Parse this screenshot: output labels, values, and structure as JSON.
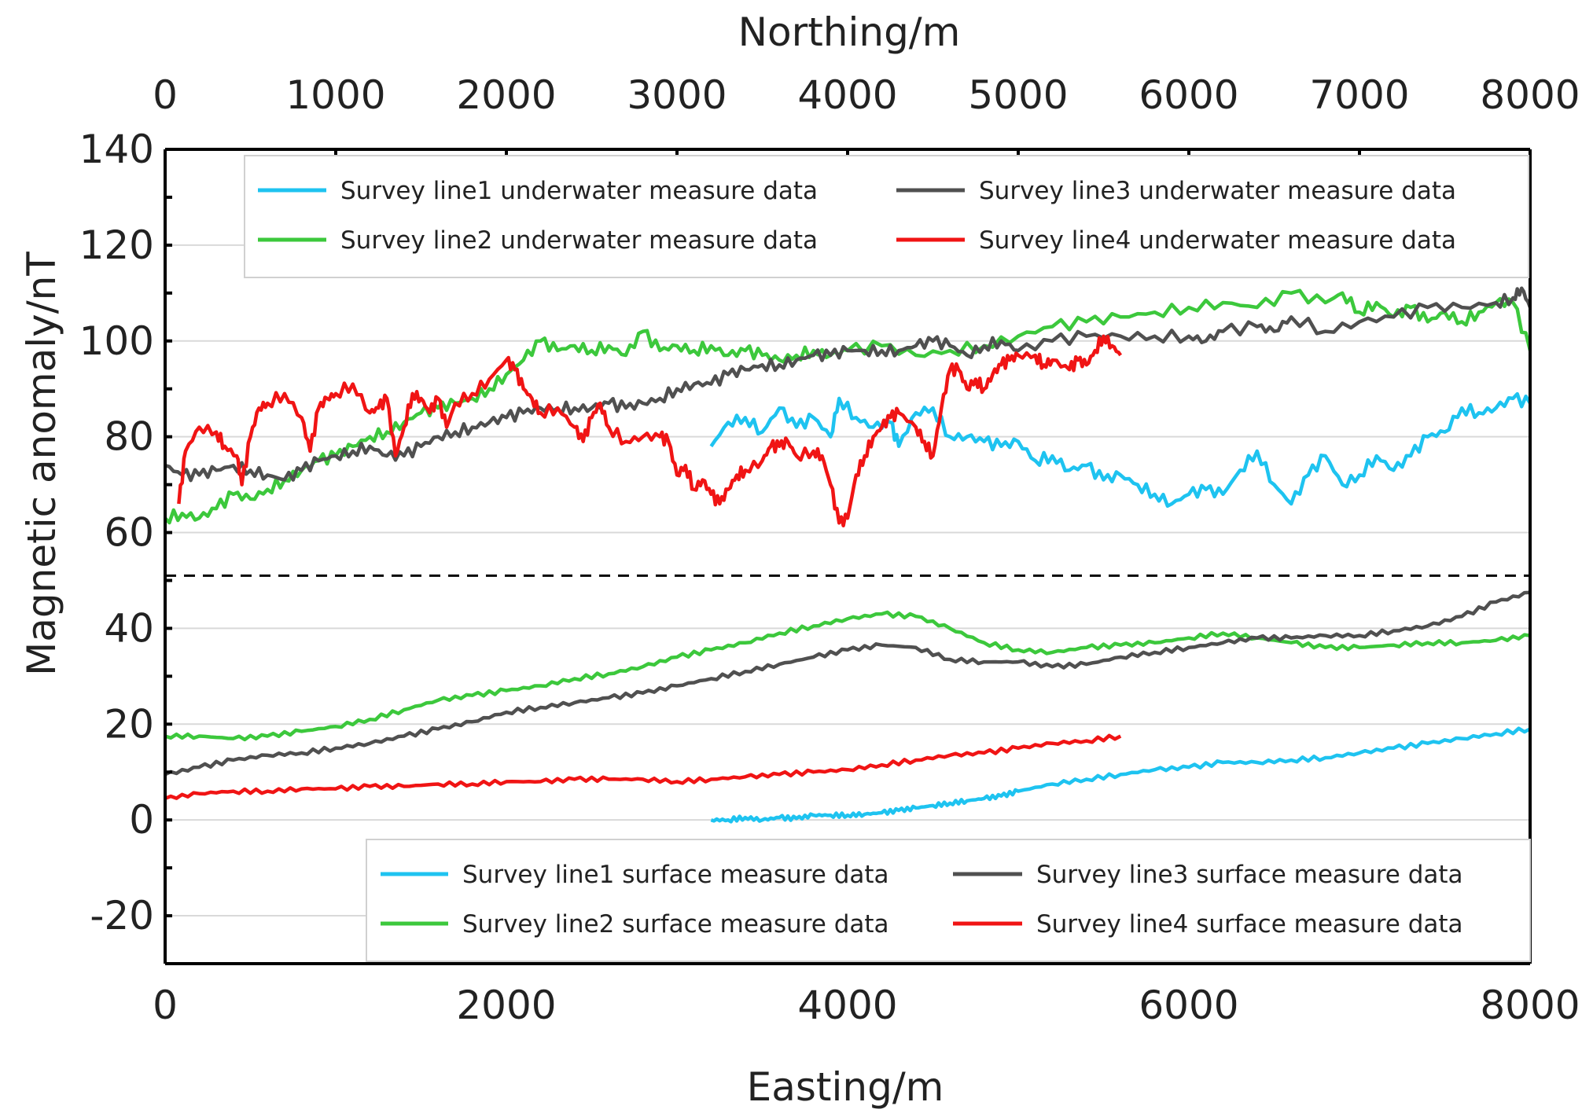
{
  "chart_data": {
    "type": "line",
    "x_top_label": "Northing/m",
    "x_bottom_label": "Easting/m",
    "ylabel": "Magnetic anomaly/nT",
    "ylim": [
      -30,
      140
    ],
    "x_bottom_lim": [
      0,
      8000
    ],
    "x_top_lim": [
      0,
      8000
    ],
    "y_ticks": [
      "140",
      "120",
      "100",
      "80",
      "60",
      "40",
      "20",
      "0",
      "-20"
    ],
    "y_tick_values": [
      140,
      120,
      100,
      80,
      60,
      40,
      20,
      0,
      -20
    ],
    "x_bottom_ticks": [
      "0",
      "2000",
      "4000",
      "6000",
      "8000"
    ],
    "x_bottom_tick_values": [
      0,
      2000,
      4000,
      6000,
      8000
    ],
    "x_top_ticks": [
      "0",
      "1000",
      "2000",
      "3000",
      "4000",
      "5000",
      "6000",
      "7000",
      "8000"
    ],
    "x_top_tick_values": [
      0,
      1000,
      2000,
      3000,
      4000,
      5000,
      6000,
      7000,
      8000
    ],
    "separator_y": 51,
    "legend_upper_position": "top-right",
    "legend_lower_position": "bottom-right",
    "colors": {
      "line1": "#1ec3f0",
      "line2": "#3cc83c",
      "line3": "#505050",
      "line4": "#f01414",
      "grid": "#d9d9d9",
      "axis": "#000000",
      "separator": "#000000"
    },
    "series": [
      {
        "name": "Survey line1 underwater measure data",
        "group": "underwater",
        "color_key": "line1",
        "x": [
          3200,
          3300,
          3400,
          3500,
          3600,
          3700,
          3800,
          3900,
          3950,
          4050,
          4150,
          4250,
          4300,
          4400,
          4500,
          4600,
          4700,
          4800,
          4900,
          5000,
          5100,
          5200,
          5300,
          5400,
          5500,
          5600,
          5700,
          5800,
          5900,
          6000,
          6100,
          6200,
          6300,
          6400,
          6500,
          6600,
          6700,
          6800,
          6900,
          7000,
          7100,
          7200,
          7300,
          7400,
          7500,
          7600,
          7700,
          7800,
          7900,
          8000
        ],
        "y": [
          78,
          83,
          84,
          81,
          86,
          82,
          84,
          80,
          88,
          84,
          82,
          83,
          78,
          85,
          86,
          80,
          80,
          79,
          78,
          79,
          75,
          76,
          73,
          74,
          71,
          72,
          70,
          68,
          66,
          68,
          69,
          68,
          73,
          77,
          70,
          66,
          72,
          76,
          70,
          72,
          76,
          73,
          76,
          80,
          81,
          86,
          85,
          86,
          88,
          87
        ]
      },
      {
        "name": "Survey line2 underwater measure data",
        "group": "underwater",
        "color_key": "line2",
        "x": [
          0,
          100,
          200,
          300,
          400,
          500,
          600,
          700,
          800,
          900,
          1000,
          1100,
          1200,
          1300,
          1400,
          1500,
          1600,
          1700,
          1800,
          1900,
          2000,
          2100,
          2200,
          2300,
          2400,
          2500,
          2600,
          2700,
          2800,
          2900,
          3000,
          3100,
          3200,
          3300,
          3400,
          3500,
          3600,
          3700,
          3800,
          3900,
          4000,
          4200,
          4400,
          4600,
          4800,
          5000,
          5200,
          5400,
          5600,
          5800,
          6000,
          6200,
          6400,
          6600,
          6800,
          6900,
          7000,
          7100,
          7200,
          7300,
          7400,
          7500,
          7600,
          7700,
          7800,
          7900,
          8000
        ],
        "y": [
          63,
          64,
          63,
          65,
          68,
          67,
          69,
          71,
          73,
          75,
          76,
          78,
          80,
          81,
          83,
          85,
          86,
          87,
          88,
          90,
          93,
          96,
          100,
          98,
          99,
          98,
          99,
          97,
          102,
          98,
          99,
          98,
          99,
          97,
          98,
          97,
          96,
          97,
          98,
          97,
          98,
          99,
          97,
          98,
          99,
          101,
          103,
          104,
          105,
          106,
          107,
          108,
          107,
          110,
          108,
          110,
          106,
          108,
          105,
          107,
          104,
          106,
          104,
          106,
          108,
          108,
          98
        ]
      },
      {
        "name": "Survey line3 underwater measure data",
        "group": "underwater",
        "color_key": "line3",
        "x": [
          0,
          100,
          200,
          300,
          400,
          500,
          600,
          700,
          800,
          900,
          1000,
          1100,
          1200,
          1300,
          1400,
          1500,
          1600,
          1700,
          1800,
          1900,
          2000,
          2100,
          2200,
          2300,
          2400,
          2500,
          2600,
          2700,
          2800,
          2900,
          3000,
          3100,
          3200,
          3300,
          3400,
          3500,
          3600,
          3700,
          3800,
          3900,
          4000,
          4100,
          4200,
          4300,
          4400,
          4500,
          4600,
          4700,
          4800,
          4900,
          5000,
          5200,
          5400,
          5600,
          5800,
          6000,
          6100,
          6200,
          6400,
          6500,
          6600,
          6800,
          7000,
          7200,
          7400,
          7600,
          7800,
          7900,
          7950,
          8000
        ],
        "y": [
          74,
          72,
          72,
          73,
          74,
          73,
          72,
          71,
          73,
          75,
          76,
          77,
          78,
          76,
          76,
          78,
          80,
          81,
          82,
          83,
          84,
          85,
          86,
          86,
          86,
          86,
          87,
          86,
          87,
          88,
          90,
          91,
          91,
          93,
          94,
          95,
          95,
          96,
          97,
          97,
          98,
          98,
          98,
          98,
          99,
          100,
          99,
          97,
          99,
          100,
          98,
          100,
          101,
          101,
          101,
          101,
          100,
          102,
          103,
          102,
          105,
          102,
          104,
          105,
          107,
          107,
          108,
          109,
          111,
          107
        ]
      },
      {
        "name": "Survey line4 underwater measure data",
        "group": "underwater",
        "color_key": "line4",
        "x": [
          80,
          120,
          200,
          300,
          350,
          420,
          450,
          500,
          550,
          600,
          700,
          800,
          850,
          900,
          950,
          1000,
          1100,
          1200,
          1250,
          1300,
          1350,
          1400,
          1450,
          1500,
          1550,
          1600,
          1650,
          1700,
          1800,
          1900,
          2000,
          2050,
          2100,
          2150,
          2200,
          2300,
          2400,
          2450,
          2500,
          2550,
          2600,
          2700,
          2800,
          2900,
          2950,
          3000,
          3050,
          3100,
          3150,
          3200,
          3250,
          3300,
          3350,
          3400,
          3500,
          3550,
          3600,
          3650,
          3700,
          3800,
          3850,
          3900,
          3950,
          4000,
          4050,
          4100,
          4150,
          4200,
          4250,
          4300,
          4400,
          4450,
          4500,
          4550,
          4600,
          4650,
          4700,
          4750,
          4800,
          4850,
          4900,
          4950,
          5000,
          5100,
          5150,
          5200,
          5300,
          5350,
          5400,
          5450,
          5500,
          5550,
          5600
        ],
        "y": [
          66,
          77,
          82,
          81,
          78,
          76,
          70,
          80,
          86,
          87,
          89,
          84,
          77,
          86,
          88,
          89,
          91,
          85,
          86,
          88,
          76,
          82,
          89,
          88,
          85,
          88,
          82,
          87,
          89,
          92,
          96,
          94,
          90,
          88,
          85,
          86,
          82,
          79,
          84,
          87,
          82,
          79,
          80,
          80,
          79,
          72,
          74,
          69,
          71,
          68,
          66,
          69,
          72,
          73,
          75,
          78,
          78,
          79,
          76,
          77,
          76,
          70,
          62,
          63,
          72,
          76,
          80,
          82,
          84,
          85,
          82,
          79,
          76,
          86,
          94,
          94,
          90,
          92,
          90,
          93,
          95,
          96,
          97,
          97,
          95,
          96,
          94,
          96,
          95,
          98,
          101,
          99,
          97
        ]
      },
      {
        "name": "Survey line1 surface measure data",
        "group": "surface",
        "color_key": "line1",
        "x": [
          3200,
          3300,
          3400,
          3500,
          3600,
          3700,
          3800,
          3900,
          4000,
          4100,
          4200,
          4300,
          4400,
          4500,
          4600,
          4700,
          4800,
          4900,
          5000,
          5200,
          5400,
          5600,
          5800,
          6000,
          6200,
          6400,
          6600,
          6800,
          7000,
          7200,
          7400,
          7600,
          7800,
          8000
        ],
        "y": [
          0,
          0,
          0.5,
          0,
          0.5,
          0.3,
          1,
          1,
          1,
          1.2,
          1.5,
          2,
          2.5,
          3,
          3.5,
          4,
          4.5,
          5,
          6,
          7.5,
          8.5,
          9.5,
          10.5,
          11,
          12,
          12,
          12.5,
          13,
          14,
          15,
          16,
          17,
          18,
          19
        ]
      },
      {
        "name": "Survey line2 surface measure data",
        "group": "surface",
        "color_key": "line2",
        "x": [
          0,
          200,
          400,
          600,
          800,
          1000,
          1200,
          1400,
          1600,
          1800,
          2000,
          2200,
          2400,
          2600,
          2800,
          3000,
          3200,
          3400,
          3600,
          3800,
          4000,
          4200,
          4400,
          4600,
          4800,
          5000,
          5200,
          5400,
          5600,
          5800,
          6000,
          6200,
          6400,
          6600,
          6800,
          7000,
          7200,
          7400,
          7600,
          7800,
          8000
        ],
        "y": [
          17.5,
          17.5,
          17,
          17.5,
          18.5,
          19.5,
          21,
          23,
          25,
          26,
          27,
          28,
          29.5,
          30.5,
          32,
          34,
          35.5,
          37,
          39,
          40.5,
          42,
          43,
          42.5,
          40,
          37,
          35.5,
          35,
          36,
          36.5,
          37,
          38,
          39,
          38,
          37,
          36,
          36,
          36.5,
          37,
          37,
          37.5,
          38.5
        ]
      },
      {
        "name": "Survey line3 surface measure data",
        "group": "surface",
        "color_key": "line3",
        "x": [
          0,
          200,
          400,
          600,
          800,
          1000,
          1200,
          1400,
          1600,
          1800,
          2000,
          2200,
          2400,
          2600,
          2800,
          3000,
          3200,
          3400,
          3600,
          3800,
          4000,
          4200,
          4400,
          4600,
          4800,
          5000,
          5200,
          5400,
          5600,
          5800,
          6000,
          6200,
          6400,
          6600,
          6800,
          7000,
          7200,
          7400,
          7600,
          7800,
          8000
        ],
        "y": [
          9.5,
          11,
          12.5,
          13.5,
          14,
          15,
          16,
          17.5,
          19,
          20.5,
          22.5,
          23.5,
          24.5,
          25.5,
          26.5,
          28,
          29.5,
          31,
          32.5,
          34,
          35.5,
          36.5,
          36,
          33.5,
          33,
          33,
          32,
          32.5,
          34,
          35,
          36,
          37,
          38,
          38,
          38.5,
          38.5,
          39.5,
          40.5,
          42.5,
          45.5,
          47.5
        ]
      },
      {
        "name": "Survey line4 surface measure data",
        "group": "surface",
        "color_key": "line4",
        "x": [
          0,
          200,
          400,
          600,
          800,
          1000,
          1200,
          1400,
          1600,
          1800,
          2000,
          2200,
          2400,
          2600,
          2800,
          3000,
          3200,
          3400,
          3600,
          3800,
          4000,
          4200,
          4400,
          4600,
          4800,
          5000,
          5200,
          5400,
          5600
        ],
        "y": [
          4.5,
          5.5,
          6,
          6,
          6.5,
          6.5,
          7,
          7,
          7.5,
          7.5,
          8,
          8,
          8.5,
          8.5,
          8.5,
          8,
          8.5,
          9,
          9.5,
          10,
          10.5,
          11.5,
          12.5,
          13.5,
          14,
          15,
          16,
          16.5,
          17.5
        ]
      }
    ]
  }
}
